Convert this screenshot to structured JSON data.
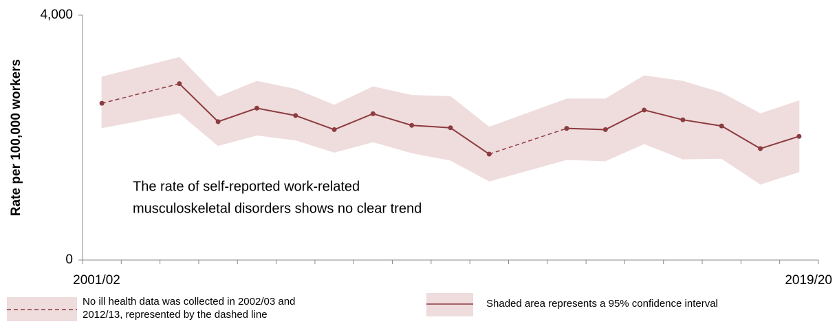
{
  "chart_data": {
    "type": "line",
    "ylabel": "Rate per 100,000 workers",
    "categories": [
      "2001/02",
      null,
      null,
      null,
      null,
      null,
      null,
      null,
      null,
      null,
      null,
      null,
      null,
      null,
      null,
      null,
      null,
      null,
      "2019/20"
    ],
    "series": [
      {
        "color": "#8c3b3f",
        "band_color": "#efdcdc",
        "values": [
          2560,
          null,
          2880,
          2260,
          2480,
          2360,
          2130,
          2390,
          2200,
          2160,
          1730,
          null,
          2150,
          2130,
          2450,
          2290,
          2190,
          1820,
          2020
        ],
        "upper": [
          2990,
          null,
          3310,
          2660,
          2920,
          2790,
          2530,
          2830,
          2690,
          2670,
          2170,
          null,
          2630,
          2630,
          3010,
          2920,
          2730,
          2390,
          2600
        ],
        "lower": [
          2160,
          null,
          2400,
          1870,
          2040,
          1960,
          1760,
          1930,
          1750,
          1630,
          1290,
          null,
          1640,
          1620,
          1900,
          1650,
          1660,
          1240,
          1440
        ]
      }
    ],
    "ylim": [
      0,
      4000
    ],
    "yticks": [
      0,
      {
        "value": 4000,
        "label": "4,000"
      }
    ],
    "annotation": [
      "The rate of self-reported work-related",
      "musculoskeletal disorders shows no clear trend"
    ],
    "legend": [
      {
        "lines": [
          "No ill health data was collected in 2002/03 and",
          "2012/13, represented by the dashed line"
        ]
      },
      {
        "lines": [
          "Shaded area represents a 95% confidence interval"
        ]
      }
    ]
  }
}
